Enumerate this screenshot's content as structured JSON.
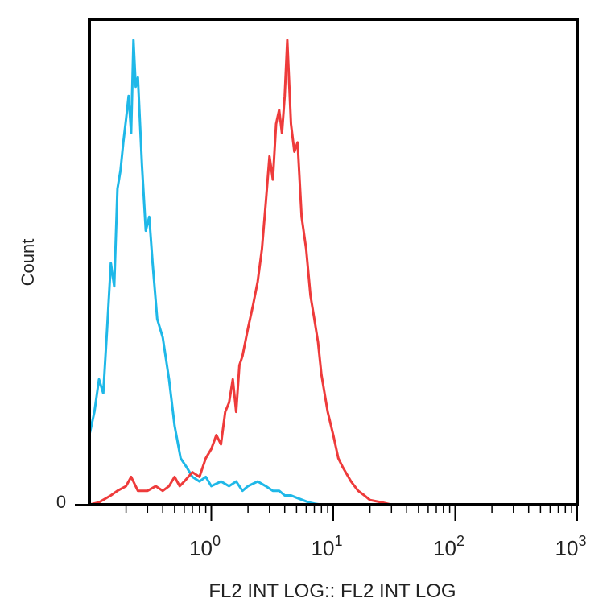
{
  "chart_data": {
    "type": "line",
    "xlabel": "FL2 INT LOG:: FL2 INT LOG",
    "ylabel": "Count",
    "x_scale": "log",
    "xlim": [
      0.1,
      1000
    ],
    "ylim": [
      0,
      100
    ],
    "y_ticks": [
      {
        "value": 0,
        "label": "0"
      }
    ],
    "x_ticks": [
      {
        "value": 1,
        "base": "10",
        "exp": "0"
      },
      {
        "value": 10,
        "base": "10",
        "exp": "1"
      },
      {
        "value": 100,
        "base": "10",
        "exp": "2"
      },
      {
        "value": 1000,
        "base": "10",
        "exp": "3"
      }
    ],
    "grid": false,
    "series": [
      {
        "color": "#1fb8e8",
        "x": [
          0.1,
          0.11,
          0.12,
          0.13,
          0.14,
          0.15,
          0.16,
          0.17,
          0.18,
          0.19,
          0.2,
          0.21,
          0.22,
          0.23,
          0.24,
          0.25,
          0.27,
          0.29,
          0.31,
          0.33,
          0.36,
          0.4,
          0.45,
          0.5,
          0.56,
          0.63,
          0.7,
          0.8,
          0.9,
          1.0,
          1.2,
          1.4,
          1.6,
          1.8,
          2.0,
          2.4,
          2.8,
          3.2,
          3.6,
          4.0,
          4.5,
          5.0,
          5.6,
          6.3,
          7.1,
          8.0,
          10,
          20,
          50,
          100,
          300,
          1000
        ],
        "y": [
          15,
          20,
          27,
          24,
          38,
          52,
          47,
          68,
          72,
          78,
          83,
          88,
          80,
          100,
          90,
          92,
          73,
          59,
          62,
          52,
          40,
          36,
          27,
          17,
          10,
          8,
          6,
          5,
          6,
          4,
          5,
          4,
          5,
          3,
          4,
          5,
          4,
          3,
          3,
          2,
          2,
          1.5,
          1,
          0.5,
          0.2,
          0,
          0,
          0,
          0,
          0,
          0,
          0
        ]
      },
      {
        "color": "#ee3b3b",
        "x": [
          0.1,
          0.12,
          0.15,
          0.17,
          0.2,
          0.22,
          0.25,
          0.3,
          0.35,
          0.4,
          0.45,
          0.5,
          0.55,
          0.6,
          0.7,
          0.8,
          0.9,
          1.0,
          1.1,
          1.2,
          1.3,
          1.4,
          1.5,
          1.6,
          1.7,
          1.8,
          2.0,
          2.2,
          2.4,
          2.6,
          2.8,
          3.0,
          3.2,
          3.4,
          3.6,
          3.8,
          4.0,
          4.2,
          4.5,
          4.8,
          5.1,
          5.5,
          6.0,
          6.5,
          7.0,
          7.5,
          8.0,
          9.0,
          10,
          11,
          12,
          14,
          16,
          18,
          20,
          25,
          30,
          50,
          100,
          300,
          1000
        ],
        "y": [
          0,
          0.5,
          2,
          3,
          4,
          6,
          3,
          3,
          4,
          3,
          4,
          6,
          4,
          5,
          7,
          6,
          10,
          12,
          15,
          13,
          20,
          22,
          27,
          20,
          30,
          32,
          38,
          43,
          48,
          55,
          65,
          75,
          70,
          82,
          85,
          80,
          88,
          100,
          82,
          76,
          78,
          62,
          55,
          45,
          40,
          35,
          28,
          20,
          15,
          10,
          8,
          5,
          3,
          2,
          1,
          0.5,
          0,
          0,
          0,
          0,
          0
        ]
      }
    ]
  }
}
